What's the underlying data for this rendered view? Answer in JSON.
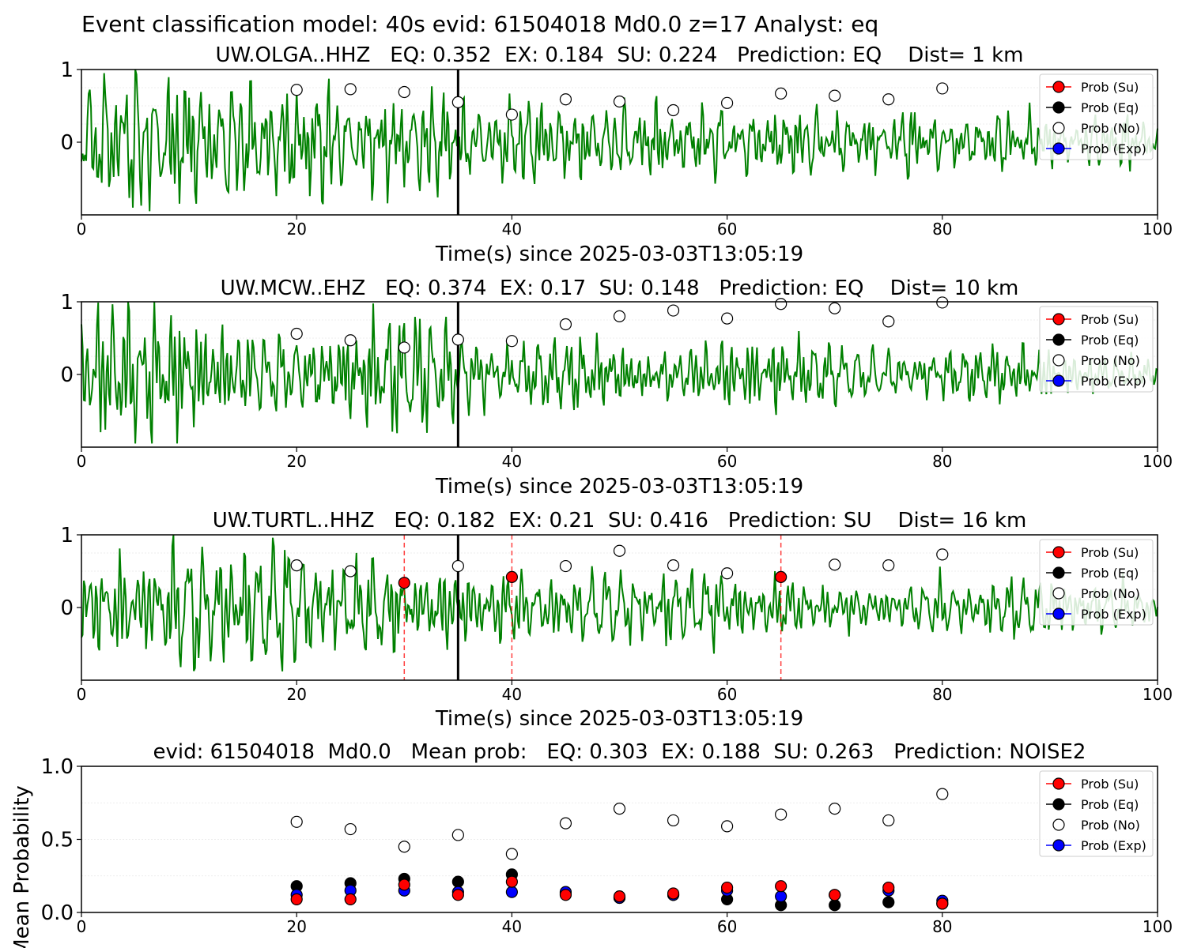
{
  "suptitle": "Event classification model: 40s evid: 61504018 Md0.0 z=17 Analyst: eq",
  "legend_labels": [
    "Prob (Su)",
    "Prob (Eq)",
    "Prob (No)",
    "Prob (Exp)"
  ],
  "colors": {
    "waveform": "#008000",
    "su": "#ff0000",
    "eq": "#000000",
    "no": "#ffffff",
    "exp": "#0000ff",
    "pick": "#ff0000"
  },
  "chart_data": [
    {
      "type": "line",
      "title": "UW.OLGA..HHZ   EQ: 0.352  EX: 0.184  SU: 0.224   Prediction: EQ    Dist= 1 km",
      "xlabel": "Time(s) since 2025-03-03T13:05:19",
      "ylabel": "",
      "xlim": [
        0,
        100
      ],
      "ylim": [
        -1,
        1
      ],
      "xticks": [
        "0",
        "20",
        "40",
        "60",
        "80",
        "100"
      ],
      "yticks": [
        "0",
        "1"
      ],
      "event_line_x": 35,
      "pick_lines_x": [],
      "legend": "top-right",
      "seed": 11,
      "series": [
        {
          "name": "Prob (No)",
          "x": [
            20,
            25,
            30,
            35,
            40,
            45,
            50,
            55,
            60,
            65,
            70,
            75,
            80
          ],
          "y": [
            0.72,
            0.73,
            0.69,
            0.55,
            0.38,
            0.59,
            0.56,
            0.44,
            0.54,
            0.67,
            0.64,
            0.59,
            0.74
          ]
        },
        {
          "name": "Prob (Su)",
          "x": [],
          "y": []
        },
        {
          "name": "Prob (Eq)",
          "x": [],
          "y": []
        },
        {
          "name": "Prob (Exp)",
          "x": [],
          "y": []
        }
      ]
    },
    {
      "type": "line",
      "title": "UW.MCW..EHZ   EQ: 0.374  EX: 0.17  SU: 0.148   Prediction: EQ    Dist= 10 km",
      "xlabel": "Time(s) since 2025-03-03T13:05:19",
      "ylabel": "",
      "xlim": [
        0,
        100
      ],
      "ylim": [
        -1,
        1
      ],
      "xticks": [
        "0",
        "20",
        "40",
        "60",
        "80",
        "100"
      ],
      "yticks": [
        "0",
        "1"
      ],
      "event_line_x": 35,
      "pick_lines_x": [],
      "legend": "top-right",
      "seed": 23,
      "series": [
        {
          "name": "Prob (No)",
          "x": [
            20,
            25,
            30,
            35,
            40,
            45,
            50,
            55,
            60,
            65,
            70,
            75,
            80
          ],
          "y": [
            0.56,
            0.47,
            0.37,
            0.48,
            0.46,
            0.69,
            0.8,
            0.88,
            0.77,
            0.97,
            0.91,
            0.73,
            0.99
          ]
        },
        {
          "name": "Prob (Su)",
          "x": [],
          "y": []
        },
        {
          "name": "Prob (Eq)",
          "x": [],
          "y": []
        },
        {
          "name": "Prob (Exp)",
          "x": [],
          "y": []
        }
      ]
    },
    {
      "type": "line",
      "title": "UW.TURTL..HHZ   EQ: 0.182  EX: 0.21  SU: 0.416   Prediction: SU    Dist= 16 km",
      "xlabel": "Time(s) since 2025-03-03T13:05:19",
      "ylabel": "",
      "xlim": [
        0,
        100
      ],
      "ylim": [
        -1,
        1
      ],
      "xticks": [
        "0",
        "20",
        "40",
        "60",
        "80",
        "100"
      ],
      "yticks": [
        "0",
        "1"
      ],
      "event_line_x": 35,
      "pick_lines_x": [
        30,
        40,
        65
      ],
      "legend": "top-right",
      "seed": 37,
      "series": [
        {
          "name": "Prob (No)",
          "x": [
            20,
            25,
            35,
            45,
            50,
            55,
            60,
            70,
            75,
            80
          ],
          "y": [
            0.58,
            0.5,
            0.57,
            0.57,
            0.78,
            0.58,
            0.47,
            0.59,
            0.58,
            0.73
          ]
        },
        {
          "name": "Prob (Su)",
          "x": [
            30,
            40,
            65
          ],
          "y": [
            0.34,
            0.42,
            0.42
          ]
        },
        {
          "name": "Prob (Eq)",
          "x": [],
          "y": []
        },
        {
          "name": "Prob (Exp)",
          "x": [],
          "y": []
        }
      ]
    },
    {
      "type": "scatter",
      "title": "evid: 61504018  Md0.0   Mean prob:   EQ: 0.303  EX: 0.188  SU: 0.263   Prediction: NOISE2",
      "xlabel": "",
      "ylabel": "Mean Probability",
      "xlim": [
        0,
        100
      ],
      "ylim": [
        0,
        1
      ],
      "xticks": [
        "0",
        "20",
        "40",
        "60",
        "80",
        "100"
      ],
      "yticks": [
        "0.0",
        "0.5",
        "1.0"
      ],
      "legend": "top-right",
      "series": [
        {
          "name": "Prob (No)",
          "x": [
            20,
            25,
            30,
            35,
            40,
            45,
            50,
            55,
            60,
            65,
            70,
            75,
            80
          ],
          "y": [
            0.62,
            0.57,
            0.45,
            0.53,
            0.4,
            0.61,
            0.71,
            0.63,
            0.59,
            0.67,
            0.71,
            0.63,
            0.81
          ]
        },
        {
          "name": "Prob (Eq)",
          "x": [
            20,
            25,
            30,
            35,
            40,
            45,
            50,
            55,
            60,
            65,
            70,
            75,
            80
          ],
          "y": [
            0.18,
            0.2,
            0.23,
            0.21,
            0.26,
            0.13,
            0.1,
            0.12,
            0.09,
            0.05,
            0.05,
            0.07,
            0.06
          ]
        },
        {
          "name": "Prob (Exp)",
          "x": [
            20,
            25,
            30,
            35,
            40,
            45,
            50,
            55,
            60,
            65,
            70,
            75,
            80
          ],
          "y": [
            0.12,
            0.15,
            0.15,
            0.14,
            0.14,
            0.14,
            0.1,
            0.12,
            0.15,
            0.11,
            0.12,
            0.15,
            0.08
          ]
        },
        {
          "name": "Prob (Su)",
          "x": [
            20,
            25,
            30,
            35,
            40,
            45,
            50,
            55,
            60,
            65,
            70,
            75,
            80
          ],
          "y": [
            0.09,
            0.09,
            0.19,
            0.12,
            0.21,
            0.12,
            0.11,
            0.13,
            0.17,
            0.18,
            0.12,
            0.17,
            0.06
          ]
        }
      ]
    }
  ]
}
